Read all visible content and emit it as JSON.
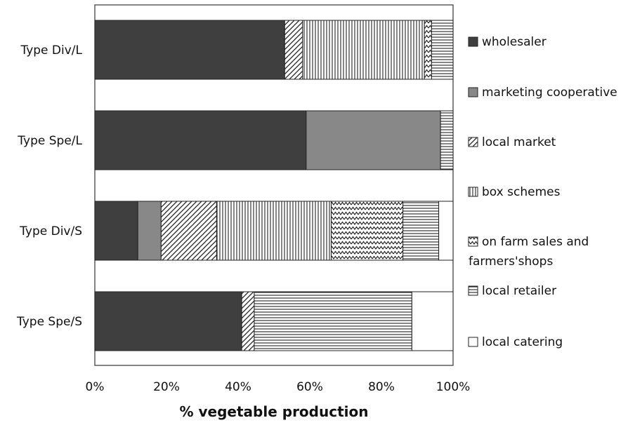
{
  "chart_data": {
    "type": "bar",
    "orientation": "horizontal",
    "stacked": true,
    "categories": [
      "Type Div/L",
      "Type Spe/L",
      "Type Div/S",
      "Type Spe/S"
    ],
    "series": [
      {
        "name": "wholesaler",
        "values": [
          53,
          59,
          12,
          41
        ]
      },
      {
        "name": "marketing cooperative",
        "values": [
          0,
          37.5,
          6.5,
          0
        ]
      },
      {
        "name": "local market",
        "values": [
          5,
          0,
          15.5,
          3.5
        ]
      },
      {
        "name": "box schemes",
        "values": [
          34,
          0,
          32,
          0
        ]
      },
      {
        "name": "on farm sales and farmers'shops",
        "values": [
          2,
          0,
          20,
          0
        ]
      },
      {
        "name": "local retailer",
        "values": [
          6,
          3.5,
          10,
          44
        ]
      },
      {
        "name": "local catering",
        "values": [
          0,
          0,
          4,
          11.5
        ]
      }
    ],
    "xlabel": "% vegetable production",
    "xlim": [
      0,
      100
    ],
    "xticks": [
      "0%",
      "20%",
      "40%",
      "60%",
      "80%",
      "100%"
    ],
    "legend_position": "right",
    "colors": {
      "wholesaler": "#3f3f3f",
      "marketing cooperative": "#888888",
      "local catering": "#ffffff"
    }
  }
}
